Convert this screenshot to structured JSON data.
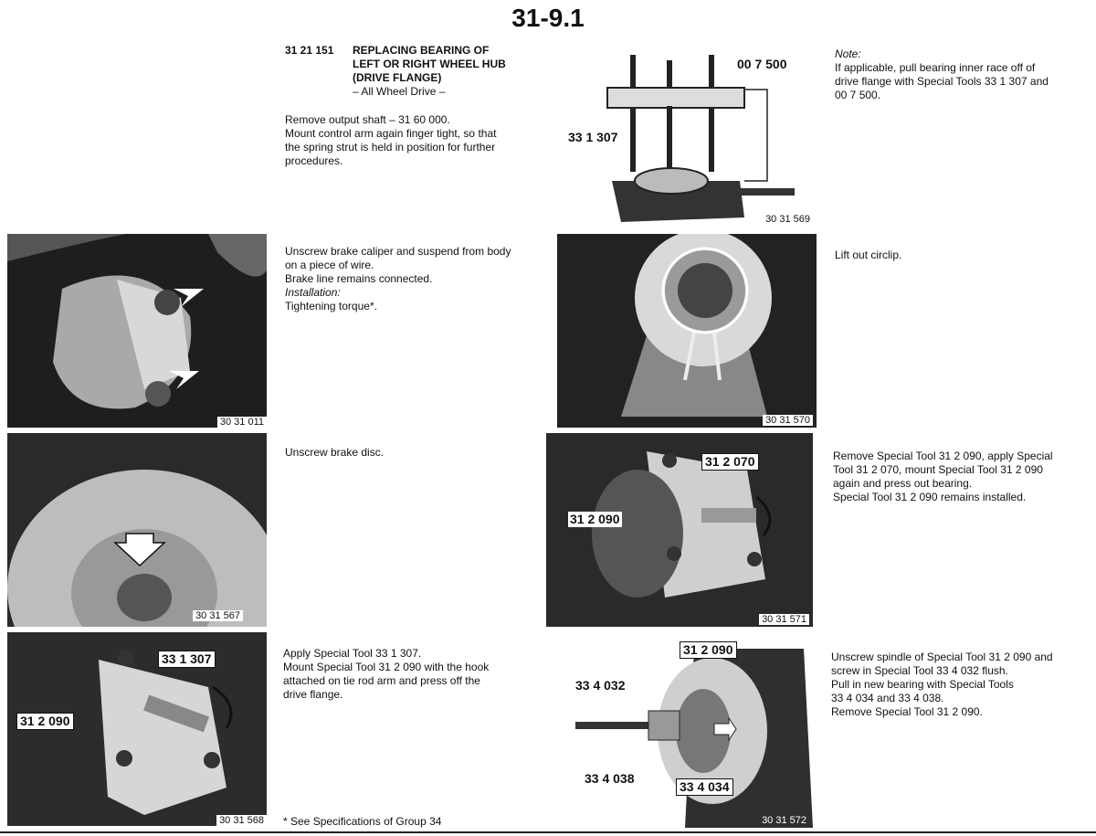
{
  "page_number": "31-9.1",
  "header": {
    "code": "31 21 151",
    "title_lines": [
      "REPLACING BEARING OF",
      "LEFT OR RIGHT WHEEL HUB",
      "(DRIVE FLANGE)"
    ],
    "subtitle": "– All Wheel Drive –"
  },
  "intro_lines": [
    "Remove output shaft – 31 60 000.",
    "Mount control arm again finger tight, so that",
    "the spring strut is held in position for further",
    "procedures."
  ],
  "steps": {
    "caliper": {
      "lines": [
        "Unscrew brake caliper and suspend from body",
        "on a piece of wire.",
        "Brake line remains connected."
      ],
      "installation_label": "Installation:",
      "torque": "Tightening torque*."
    },
    "disc": {
      "lines": [
        "Unscrew brake disc."
      ]
    },
    "flange": {
      "lines": [
        "Apply Special Tool 33 1 307.",
        "Mount Special Tool 31 2 090 with the hook",
        "attached on tie rod arm and press off the",
        "drive flange."
      ]
    },
    "note": {
      "label": "Note:",
      "lines": [
        "If applicable, pull bearing inner race off of",
        "drive flange with Special Tools 33 1 307 and",
        "00 7 500."
      ]
    },
    "circlip": {
      "lines": [
        "Lift out circlip."
      ]
    },
    "press_out": {
      "lines": [
        "Remove Special Tool 31 2 090, apply Special",
        "Tool 31 2 070, mount Special Tool 31 2 090",
        "again and press out bearing.",
        "Special Tool 31 2 090 remains installed."
      ]
    },
    "pull_in": {
      "lines": [
        "Unscrew spindle of Special Tool 31 2 090 and",
        "screw in Special Tool 33 4 032 flush.",
        "Pull in new bearing with Special Tools",
        "33 4 034 and 33 4 038.",
        "Remove Special Tool 31 2 090."
      ]
    }
  },
  "footnote": "* See Specifications of Group 34",
  "figures": {
    "f1": {
      "id": "30 31 011",
      "labels": []
    },
    "f2": {
      "id": "30 31 567",
      "labels": []
    },
    "f3": {
      "id": "30 31 568",
      "labels": [
        "33 1 307",
        "31 2 090"
      ]
    },
    "f4": {
      "id": "30 31 569",
      "labels": [
        "00 7 500",
        "33 1 307"
      ]
    },
    "f5": {
      "id": "30 31 570",
      "labels": []
    },
    "f6": {
      "id": "30 31 571",
      "labels": [
        "31 2 070",
        "31 2 090"
      ]
    },
    "f7": {
      "id": "30 31 572",
      "labels": [
        "31 2 090",
        "33 4 032",
        "33 4 038",
        "33 4 034"
      ]
    }
  }
}
